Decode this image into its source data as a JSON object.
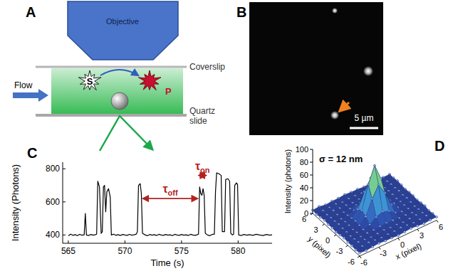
{
  "diagram": {
    "letter": "A",
    "objective": "Objective",
    "flow": "Flow",
    "substrate": "S",
    "product": "P",
    "coverslip": "Coverslip",
    "slide": "Quartz slide"
  },
  "image": {
    "letter": "B",
    "scale_bar": "5 µm"
  },
  "chart_data": [
    {
      "letter": "C",
      "type": "line",
      "x_label": "Time (s)",
      "y_label": "Intensity (Photons)",
      "color": "#000000",
      "x": [
        565.0,
        565.2,
        565.4,
        565.6,
        565.8,
        566.0,
        566.2,
        566.4,
        566.5,
        566.6,
        566.8,
        567.0,
        567.2,
        567.4,
        567.5,
        567.6,
        567.75,
        567.9,
        568.0,
        568.1,
        568.2,
        568.3,
        568.4,
        568.55,
        568.7,
        568.8,
        569.0,
        569.2,
        569.4,
        569.6,
        569.8,
        570.0,
        570.2,
        570.4,
        570.6,
        570.8,
        571.0,
        571.1,
        571.2,
        571.35,
        571.45,
        571.55,
        571.8,
        572.0,
        572.2,
        572.4,
        572.6,
        572.8,
        573.0,
        573.2,
        573.4,
        573.6,
        573.8,
        574.0,
        574.2,
        574.4,
        574.6,
        574.8,
        575.0,
        575.2,
        575.4,
        575.6,
        575.8,
        576.0,
        576.2,
        576.4,
        576.5,
        576.6,
        576.7,
        576.8,
        576.9,
        577.0,
        577.1,
        577.3,
        577.5,
        577.7,
        577.9,
        578.0,
        578.1,
        578.3,
        578.5,
        578.6,
        578.8,
        578.9,
        579.1,
        579.25,
        579.35,
        579.5,
        579.6,
        579.7,
        579.85,
        579.95,
        580.05,
        580.3,
        580.5,
        580.8,
        581.0,
        581.3,
        581.6,
        581.9,
        582.2,
        582.5,
        582.8,
        583.0
      ],
      "values": [
        395,
        405,
        398,
        402,
        396,
        404,
        399,
        401,
        530,
        400,
        397,
        403,
        399,
        402,
        405,
        725,
        690,
        410,
        420,
        690,
        700,
        540,
        660,
        680,
        630,
        400,
        405,
        398,
        402,
        397,
        403,
        400,
        398,
        404,
        399,
        401,
        405,
        420,
        700,
        710,
        650,
        410,
        400,
        396,
        403,
        399,
        402,
        397,
        404,
        400,
        398,
        403,
        399,
        401,
        396,
        404,
        400,
        398,
        403,
        399,
        401,
        397,
        404,
        400,
        398,
        402,
        405,
        690,
        650,
        640,
        680,
        640,
        410,
        400,
        396,
        403,
        405,
        660,
        775,
        770,
        760,
        420,
        420,
        735,
        740,
        725,
        410,
        400,
        405,
        700,
        715,
        705,
        400,
        397,
        403,
        399,
        402,
        398,
        404,
        400,
        397,
        403,
        399,
        401
      ],
      "xlim": [
        564.5,
        583
      ],
      "xticks": [
        565,
        570,
        575,
        580
      ],
      "ylim": [
        350,
        840
      ],
      "yticks": [
        400,
        600,
        800
      ],
      "annotations": [
        {
          "label": "τ",
          "subscript": "off",
          "x": [
            571.6,
            576.4
          ],
          "y": 620
        },
        {
          "label": "τ",
          "subscript": "on",
          "x": [
            576.55,
            577.15
          ],
          "y": 760
        }
      ]
    },
    {
      "letter": "D",
      "type": "surface",
      "annotation": "σ = 12 nm",
      "x_label": "x (pixel)",
      "y_label": "y (pixel)",
      "z_label": "Intensity (photons)",
      "x": [
        -6,
        -5,
        -4,
        -3,
        -2,
        -1,
        0,
        1,
        2,
        3,
        4,
        5,
        6
      ],
      "y": [
        -6,
        -5,
        -4,
        -3,
        -2,
        -1,
        0,
        1,
        2,
        3,
        4,
        5,
        6
      ],
      "z": [
        [
          5,
          4,
          5,
          6,
          5,
          5,
          4,
          5,
          6,
          5,
          4,
          5,
          5
        ],
        [
          4,
          5,
          6,
          5,
          4,
          5,
          5,
          6,
          5,
          4,
          5,
          6,
          5
        ],
        [
          5,
          6,
          5,
          4,
          5,
          6,
          5,
          5,
          4,
          5,
          6,
          5,
          4
        ],
        [
          5,
          5,
          4,
          5,
          5,
          6,
          7,
          6,
          5,
          5,
          4,
          5,
          6
        ],
        [
          6,
          4,
          5,
          5,
          8,
          15,
          19,
          15,
          8,
          5,
          5,
          4,
          5
        ],
        [
          5,
          5,
          4,
          6,
          15,
          38,
          55,
          38,
          15,
          6,
          5,
          5,
          4
        ],
        [
          4,
          5,
          5,
          7,
          19,
          55,
          80,
          55,
          19,
          7,
          5,
          6,
          5
        ],
        [
          5,
          6,
          5,
          6,
          15,
          38,
          55,
          38,
          15,
          6,
          4,
          5,
          5
        ],
        [
          5,
          5,
          4,
          5,
          8,
          15,
          19,
          15,
          8,
          5,
          5,
          6,
          4
        ],
        [
          6,
          5,
          5,
          4,
          5,
          6,
          7,
          6,
          5,
          4,
          5,
          5,
          5
        ],
        [
          5,
          4,
          6,
          5,
          5,
          4,
          5,
          6,
          5,
          5,
          4,
          5,
          6
        ],
        [
          4,
          5,
          5,
          6,
          4,
          5,
          5,
          4,
          5,
          6,
          5,
          4,
          5
        ],
        [
          5,
          6,
          4,
          5,
          5,
          6,
          5,
          5,
          4,
          5,
          6,
          5,
          5
        ]
      ],
      "xlim": [
        -6,
        6
      ],
      "xticks": [
        -6,
        -3,
        0,
        3,
        6
      ],
      "ylim": [
        -6,
        6
      ],
      "yticks": [
        -6,
        -3,
        0,
        3,
        6
      ],
      "zlim": [
        0,
        100
      ],
      "zticks": [
        0,
        20,
        40,
        60,
        80,
        100
      ]
    }
  ]
}
